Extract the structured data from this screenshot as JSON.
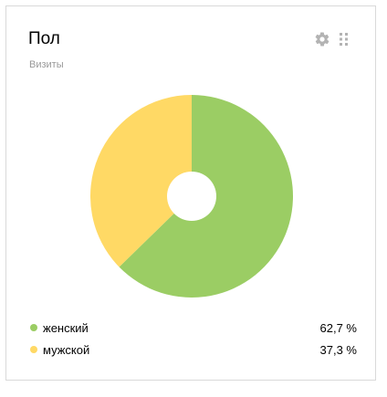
{
  "widget": {
    "title": "Пол",
    "subtitle": "Визиты",
    "settings_icon": "gear-icon",
    "drag_icon": "drag-handle-icon"
  },
  "colors": {
    "female": "#9bcd64",
    "male": "#ffd965",
    "icon": "#b3b3b3"
  },
  "legend": [
    {
      "label": "женский",
      "value": "62,7 %"
    },
    {
      "label": "мужской",
      "value": "37,3 %"
    }
  ],
  "chart_data": {
    "type": "pie",
    "donut": true,
    "categories": [
      "женский",
      "мужской"
    ],
    "values": [
      62.7,
      37.3
    ],
    "colors": [
      "#9bcd64",
      "#ffd965"
    ]
  }
}
